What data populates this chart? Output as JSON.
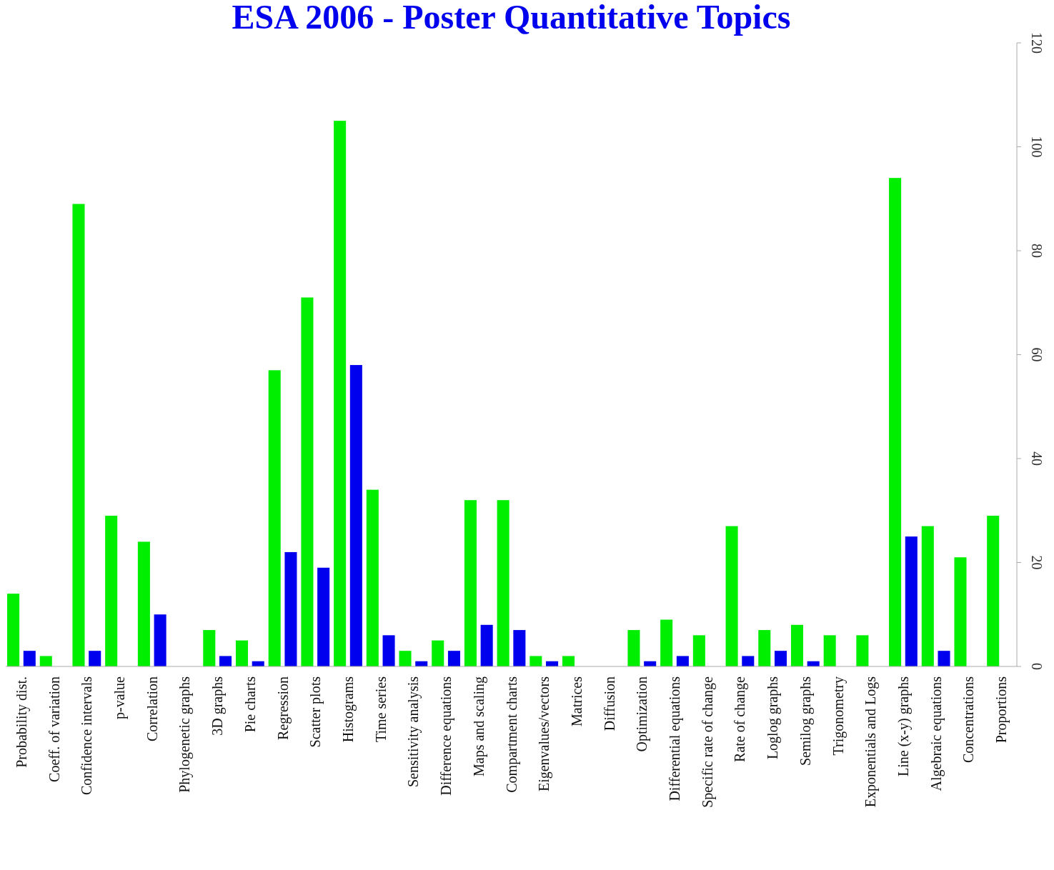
{
  "chart_data": {
    "type": "bar",
    "title": "ESA 2006 - Poster Quantitative Topics",
    "categories": [
      "Probability dist.",
      "Coeff. of variation",
      "Confidence intervals",
      "p-value",
      "Correlation",
      "Phylogenetic graphs",
      "3D graphs",
      "Pie charts",
      "Regression",
      "Scatter plots",
      "Histograms",
      "Time series",
      "Sensitivity analysis",
      "Difference equations",
      "Maps and scaling",
      "Compartment charts",
      "Eigenvalues/vectors",
      "Matrices",
      "Diffusion",
      "Optimization",
      "Differential equations",
      "Specific rate of change",
      "Rate of change",
      "Loglog graphs",
      "Semilog graphs",
      "Trigonometry",
      "Exponentials and Logs",
      "Line (x-y) graphs",
      "Algebraic equations",
      "Concentrations",
      "Proportions"
    ],
    "series": [
      {
        "color": "#00ee00",
        "values": [
          14,
          2,
          89,
          29,
          24,
          0,
          7,
          5,
          57,
          71,
          105,
          34,
          3,
          5,
          32,
          32,
          2,
          2,
          0,
          7,
          9,
          6,
          27,
          7,
          8,
          6,
          6,
          94,
          27,
          21,
          29
        ]
      },
      {
        "color": "#0000ee",
        "values": [
          3,
          0,
          3,
          0,
          10,
          0,
          2,
          1,
          22,
          19,
          58,
          6,
          1,
          3,
          8,
          7,
          1,
          0,
          0,
          1,
          2,
          0,
          2,
          3,
          1,
          0,
          0,
          25,
          3,
          0,
          0
        ]
      }
    ],
    "ylim": [
      0,
      120
    ],
    "yticks": [
      0,
      20,
      40,
      60,
      80,
      100,
      120
    ]
  }
}
